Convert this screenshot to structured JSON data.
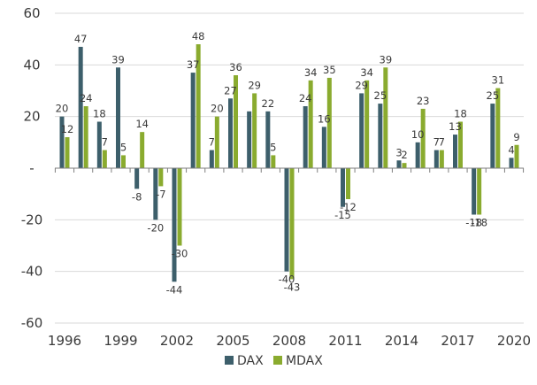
{
  "chart_data": {
    "type": "bar",
    "x": [
      1996,
      1997,
      1998,
      1999,
      2000,
      2001,
      2002,
      2003,
      2004,
      2005,
      2006,
      2007,
      2008,
      2009,
      2010,
      2011,
      2012,
      2013,
      2014,
      2015,
      2016,
      2017,
      2018,
      2019,
      2020
    ],
    "x_tick_labels": [
      "1996",
      "1999",
      "2002",
      "2005",
      "2008",
      "2011",
      "2014",
      "2017",
      "2020"
    ],
    "y_tick_labels": [
      "60",
      "40",
      "20",
      "-",
      "-20",
      "-40",
      "-60"
    ],
    "y_ticks": [
      60,
      40,
      20,
      0,
      -20,
      -40,
      -60
    ],
    "ylim": [
      -60,
      60
    ],
    "grid": "horizontal",
    "legend_position": "bottom",
    "series": [
      {
        "name": "DAX",
        "color": "#3d5f6b",
        "values": [
          20,
          47,
          18,
          39,
          -8,
          -20,
          -44,
          37,
          7,
          27,
          22,
          22,
          -40,
          24,
          16,
          -15,
          29,
          25,
          3,
          10,
          7,
          13,
          -18,
          25,
          4
        ],
        "labels": [
          "20",
          "47",
          "18",
          "39",
          "-8",
          "-20",
          "-44",
          "37",
          "7",
          "27",
          "",
          "22",
          "-40",
          "24",
          "16",
          "-15",
          "29",
          "25",
          "3",
          "10",
          "7",
          "13",
          "-18",
          "25",
          "4"
        ]
      },
      {
        "name": "MDAX",
        "color": "#8aab2f",
        "values": [
          12,
          24,
          7,
          5,
          14,
          -7,
          -30,
          48,
          20,
          36,
          29,
          5,
          -43,
          34,
          35,
          -12,
          34,
          39,
          2,
          23,
          7,
          18,
          -18,
          31,
          9
        ],
        "labels": [
          "12",
          "24",
          "7",
          "5",
          "14",
          "-7",
          "-30",
          "48",
          "20",
          "36",
          "29",
          "5",
          "-43",
          "34",
          "35",
          "-12",
          "34",
          "39",
          "2",
          "23",
          "7",
          "18",
          "-18",
          "31",
          "9"
        ]
      }
    ]
  }
}
